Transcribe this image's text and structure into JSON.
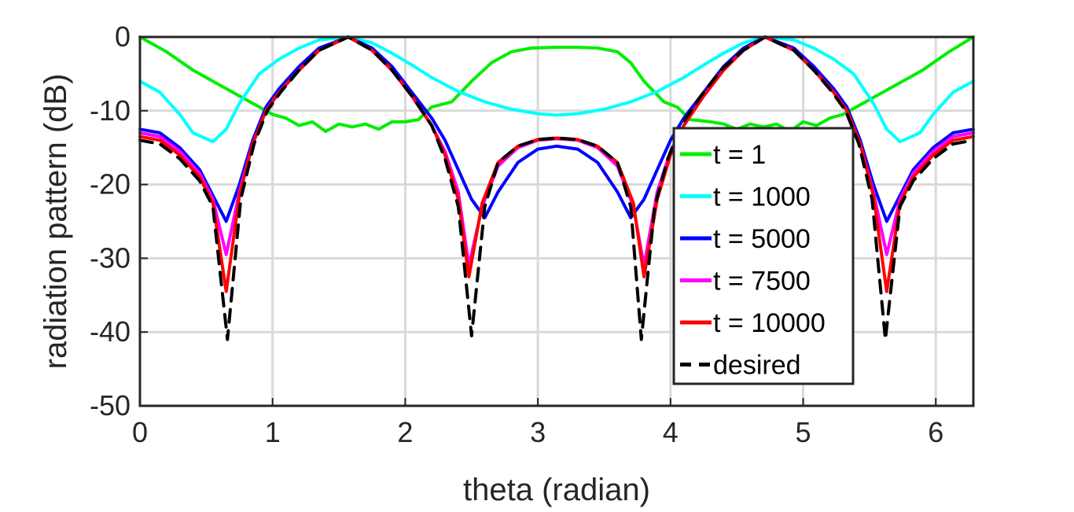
{
  "chart_data": {
    "type": "line",
    "xlabel": "theta (radian)",
    "ylabel": "radiation pattern (dB)",
    "xlim": [
      0,
      6.2832
    ],
    "ylim": [
      -50,
      0
    ],
    "xticks": [
      0,
      1,
      2,
      3,
      4,
      5,
      6
    ],
    "yticks": [
      0,
      -10,
      -20,
      -30,
      -40,
      -50
    ],
    "grid": true,
    "legend_position": "right",
    "series": [
      {
        "name": "t = 1",
        "color": "#00ee00",
        "dashed": false,
        "points": [
          [
            0,
            0
          ],
          [
            0.2,
            -2
          ],
          [
            0.4,
            -4.5
          ],
          [
            0.6,
            -6.5
          ],
          [
            0.8,
            -8.5
          ],
          [
            1.0,
            -10.5
          ],
          [
            1.1,
            -11
          ],
          [
            1.2,
            -12
          ],
          [
            1.3,
            -11.5
          ],
          [
            1.4,
            -12.8
          ],
          [
            1.5,
            -11.8
          ],
          [
            1.6,
            -12.2
          ],
          [
            1.7,
            -11.8
          ],
          [
            1.8,
            -12.5
          ],
          [
            1.9,
            -11.5
          ],
          [
            2.0,
            -11.5
          ],
          [
            2.1,
            -11.2
          ],
          [
            2.2,
            -9.5
          ],
          [
            2.35,
            -8.8
          ],
          [
            2.5,
            -6
          ],
          [
            2.65,
            -3.5
          ],
          [
            2.8,
            -2
          ],
          [
            2.95,
            -1.5
          ],
          [
            3.1416,
            -1.4
          ],
          [
            3.3,
            -1.4
          ],
          [
            3.45,
            -1.5
          ],
          [
            3.6,
            -2
          ],
          [
            3.7,
            -3.5
          ],
          [
            3.8,
            -6
          ],
          [
            3.95,
            -8.8
          ],
          [
            4.05,
            -9.5
          ],
          [
            4.15,
            -11.2
          ],
          [
            4.3,
            -11.5
          ],
          [
            4.4,
            -11.8
          ],
          [
            4.5,
            -12.5
          ],
          [
            4.6,
            -11.8
          ],
          [
            4.7,
            -12.2
          ],
          [
            4.8,
            -11.8
          ],
          [
            4.9,
            -12.8
          ],
          [
            5.0,
            -11.5
          ],
          [
            5.1,
            -12
          ],
          [
            5.2,
            -11
          ],
          [
            5.3,
            -10.5
          ],
          [
            5.5,
            -8.5
          ],
          [
            5.7,
            -6.5
          ],
          [
            5.9,
            -4.5
          ],
          [
            6.1,
            -2
          ],
          [
            6.2832,
            0
          ]
        ]
      },
      {
        "name": "t = 1000",
        "color": "#00ffff",
        "dashed": false,
        "points": [
          [
            0,
            -6
          ],
          [
            0.15,
            -7.5
          ],
          [
            0.3,
            -10.5
          ],
          [
            0.4,
            -13
          ],
          [
            0.55,
            -14.2
          ],
          [
            0.65,
            -12.5
          ],
          [
            0.75,
            -9
          ],
          [
            0.9,
            -5
          ],
          [
            1.05,
            -3
          ],
          [
            1.2,
            -1.5
          ],
          [
            1.35,
            -0.4
          ],
          [
            1.5708,
            0
          ],
          [
            1.75,
            -0.8
          ],
          [
            1.9,
            -2.2
          ],
          [
            2.05,
            -3.8
          ],
          [
            2.2,
            -5.5
          ],
          [
            2.4,
            -7.4
          ],
          [
            2.6,
            -8.8
          ],
          [
            2.8,
            -9.8
          ],
          [
            3.0,
            -10.4
          ],
          [
            3.1416,
            -10.6
          ],
          [
            3.3,
            -10.4
          ],
          [
            3.5,
            -9.8
          ],
          [
            3.7,
            -8.8
          ],
          [
            3.9,
            -7.4
          ],
          [
            4.1,
            -5.5
          ],
          [
            4.25,
            -3.8
          ],
          [
            4.4,
            -2.2
          ],
          [
            4.55,
            -0.8
          ],
          [
            4.7124,
            0
          ],
          [
            4.93,
            -0.4
          ],
          [
            5.08,
            -1.5
          ],
          [
            5.23,
            -3
          ],
          [
            5.38,
            -5
          ],
          [
            5.53,
            -9
          ],
          [
            5.63,
            -12.5
          ],
          [
            5.73,
            -14.2
          ],
          [
            5.88,
            -13
          ],
          [
            5.98,
            -10.5
          ],
          [
            6.13,
            -7.5
          ],
          [
            6.2832,
            -6
          ]
        ]
      },
      {
        "name": "t = 5000",
        "color": "#0000ff",
        "dashed": false,
        "points": [
          [
            0,
            -12.5
          ],
          [
            0.15,
            -13
          ],
          [
            0.3,
            -15
          ],
          [
            0.45,
            -18
          ],
          [
            0.55,
            -21.5
          ],
          [
            0.65,
            -25
          ],
          [
            0.75,
            -20
          ],
          [
            0.85,
            -14
          ],
          [
            0.95,
            -9.5
          ],
          [
            1.05,
            -7
          ],
          [
            1.2,
            -4
          ],
          [
            1.35,
            -1.5
          ],
          [
            1.5708,
            0
          ],
          [
            1.75,
            -1.5
          ],
          [
            1.9,
            -4
          ],
          [
            2.05,
            -7.5
          ],
          [
            2.2,
            -11
          ],
          [
            2.3,
            -14
          ],
          [
            2.4,
            -18
          ],
          [
            2.5,
            -22
          ],
          [
            2.6,
            -24.5
          ],
          [
            2.7,
            -21
          ],
          [
            2.85,
            -17
          ],
          [
            3.0,
            -15.2
          ],
          [
            3.1416,
            -14.8
          ],
          [
            3.3,
            -15.2
          ],
          [
            3.45,
            -17
          ],
          [
            3.6,
            -21
          ],
          [
            3.7,
            -24.5
          ],
          [
            3.8,
            -22
          ],
          [
            3.9,
            -18
          ],
          [
            4.0,
            -14
          ],
          [
            4.1,
            -11
          ],
          [
            4.25,
            -7.5
          ],
          [
            4.4,
            -4
          ],
          [
            4.55,
            -1.5
          ],
          [
            4.7124,
            0
          ],
          [
            4.93,
            -1.5
          ],
          [
            5.08,
            -4
          ],
          [
            5.23,
            -7
          ],
          [
            5.33,
            -9.5
          ],
          [
            5.43,
            -14
          ],
          [
            5.53,
            -20
          ],
          [
            5.63,
            -25
          ],
          [
            5.73,
            -21.5
          ],
          [
            5.83,
            -18
          ],
          [
            5.98,
            -15
          ],
          [
            6.13,
            -13
          ],
          [
            6.2832,
            -12.5
          ]
        ]
      },
      {
        "name": "t = 7500",
        "color": "#ff00ff",
        "dashed": false,
        "points": [
          [
            0,
            -13
          ],
          [
            0.15,
            -13.5
          ],
          [
            0.3,
            -15.5
          ],
          [
            0.45,
            -18.5
          ],
          [
            0.55,
            -22
          ],
          [
            0.65,
            -29.5
          ],
          [
            0.75,
            -21
          ],
          [
            0.85,
            -14.5
          ],
          [
            0.95,
            -10
          ],
          [
            1.05,
            -7.5
          ],
          [
            1.2,
            -4.5
          ],
          [
            1.35,
            -1.8
          ],
          [
            1.5708,
            0
          ],
          [
            1.75,
            -1.8
          ],
          [
            1.9,
            -4.5
          ],
          [
            2.05,
            -8
          ],
          [
            2.2,
            -12
          ],
          [
            2.3,
            -15.5
          ],
          [
            2.4,
            -21
          ],
          [
            2.48,
            -31
          ],
          [
            2.58,
            -23
          ],
          [
            2.7,
            -17.5
          ],
          [
            2.85,
            -15
          ],
          [
            3.0,
            -14
          ],
          [
            3.1416,
            -13.8
          ],
          [
            3.3,
            -14
          ],
          [
            3.45,
            -15
          ],
          [
            3.6,
            -17.5
          ],
          [
            3.72,
            -23
          ],
          [
            3.8,
            -31
          ],
          [
            3.9,
            -21
          ],
          [
            4.0,
            -15.5
          ],
          [
            4.1,
            -12
          ],
          [
            4.25,
            -8
          ],
          [
            4.4,
            -4.5
          ],
          [
            4.55,
            -1.8
          ],
          [
            4.7124,
            0
          ],
          [
            4.93,
            -1.8
          ],
          [
            5.08,
            -4.5
          ],
          [
            5.23,
            -7.5
          ],
          [
            5.33,
            -10
          ],
          [
            5.43,
            -14.5
          ],
          [
            5.53,
            -21
          ],
          [
            5.63,
            -29.5
          ],
          [
            5.73,
            -22
          ],
          [
            5.83,
            -18.5
          ],
          [
            5.98,
            -15.5
          ],
          [
            6.13,
            -13.5
          ],
          [
            6.2832,
            -13
          ]
        ]
      },
      {
        "name": "t = 10000",
        "color": "#ff0000",
        "dashed": false,
        "points": [
          [
            0,
            -13.5
          ],
          [
            0.15,
            -14
          ],
          [
            0.3,
            -16
          ],
          [
            0.45,
            -19
          ],
          [
            0.55,
            -22.5
          ],
          [
            0.65,
            -34.5
          ],
          [
            0.75,
            -21.5
          ],
          [
            0.85,
            -14.5
          ],
          [
            0.95,
            -10
          ],
          [
            1.05,
            -7.5
          ],
          [
            1.2,
            -4.5
          ],
          [
            1.35,
            -1.8
          ],
          [
            1.5708,
            0
          ],
          [
            1.75,
            -1.8
          ],
          [
            1.9,
            -4.5
          ],
          [
            2.05,
            -8
          ],
          [
            2.2,
            -12
          ],
          [
            2.3,
            -16
          ],
          [
            2.4,
            -22
          ],
          [
            2.48,
            -32.5
          ],
          [
            2.58,
            -22.5
          ],
          [
            2.7,
            -17
          ],
          [
            2.85,
            -14.8
          ],
          [
            3.0,
            -13.9
          ],
          [
            3.1416,
            -13.7
          ],
          [
            3.3,
            -13.9
          ],
          [
            3.45,
            -14.8
          ],
          [
            3.6,
            -17
          ],
          [
            3.72,
            -22.5
          ],
          [
            3.8,
            -32.5
          ],
          [
            3.9,
            -22
          ],
          [
            4.0,
            -16
          ],
          [
            4.1,
            -12
          ],
          [
            4.25,
            -8
          ],
          [
            4.4,
            -4.5
          ],
          [
            4.55,
            -1.8
          ],
          [
            4.7124,
            0
          ],
          [
            4.93,
            -1.8
          ],
          [
            5.08,
            -4.5
          ],
          [
            5.23,
            -7.5
          ],
          [
            5.33,
            -10
          ],
          [
            5.43,
            -14.5
          ],
          [
            5.53,
            -21.5
          ],
          [
            5.63,
            -34.5
          ],
          [
            5.73,
            -22.5
          ],
          [
            5.83,
            -19
          ],
          [
            5.98,
            -16
          ],
          [
            6.13,
            -14
          ],
          [
            6.2832,
            -13.5
          ]
        ]
      },
      {
        "name": "desired",
        "color": "#000000",
        "dashed": true,
        "points": [
          [
            0,
            -14
          ],
          [
            0.15,
            -14.5
          ],
          [
            0.3,
            -16.5
          ],
          [
            0.45,
            -19.5
          ],
          [
            0.55,
            -23
          ],
          [
            0.66,
            -41
          ],
          [
            0.76,
            -22
          ],
          [
            0.86,
            -14.5
          ],
          [
            0.96,
            -10
          ],
          [
            1.06,
            -7.5
          ],
          [
            1.2,
            -4.5
          ],
          [
            1.35,
            -1.8
          ],
          [
            1.5708,
            0
          ],
          [
            1.75,
            -1.8
          ],
          [
            1.9,
            -4.5
          ],
          [
            2.05,
            -8
          ],
          [
            2.2,
            -12
          ],
          [
            2.3,
            -16.5
          ],
          [
            2.4,
            -23
          ],
          [
            2.5,
            -40.5
          ],
          [
            2.6,
            -23
          ],
          [
            2.7,
            -17
          ],
          [
            2.85,
            -14.8
          ],
          [
            3.0,
            -13.9
          ],
          [
            3.1416,
            -13.7
          ],
          [
            3.3,
            -13.9
          ],
          [
            3.45,
            -14.8
          ],
          [
            3.6,
            -17
          ],
          [
            3.7,
            -23
          ],
          [
            3.78,
            -41
          ],
          [
            3.88,
            -23
          ],
          [
            3.98,
            -16.5
          ],
          [
            4.08,
            -12
          ],
          [
            4.23,
            -8
          ],
          [
            4.38,
            -4.5
          ],
          [
            4.55,
            -1.8
          ],
          [
            4.7124,
            0
          ],
          [
            4.93,
            -1.8
          ],
          [
            5.08,
            -4.5
          ],
          [
            5.22,
            -7.5
          ],
          [
            5.32,
            -10
          ],
          [
            5.42,
            -14.5
          ],
          [
            5.52,
            -22
          ],
          [
            5.62,
            -41
          ],
          [
            5.73,
            -23
          ],
          [
            5.83,
            -19.5
          ],
          [
            5.98,
            -16.5
          ],
          [
            6.13,
            -14.5
          ],
          [
            6.2832,
            -14
          ]
        ]
      }
    ]
  }
}
